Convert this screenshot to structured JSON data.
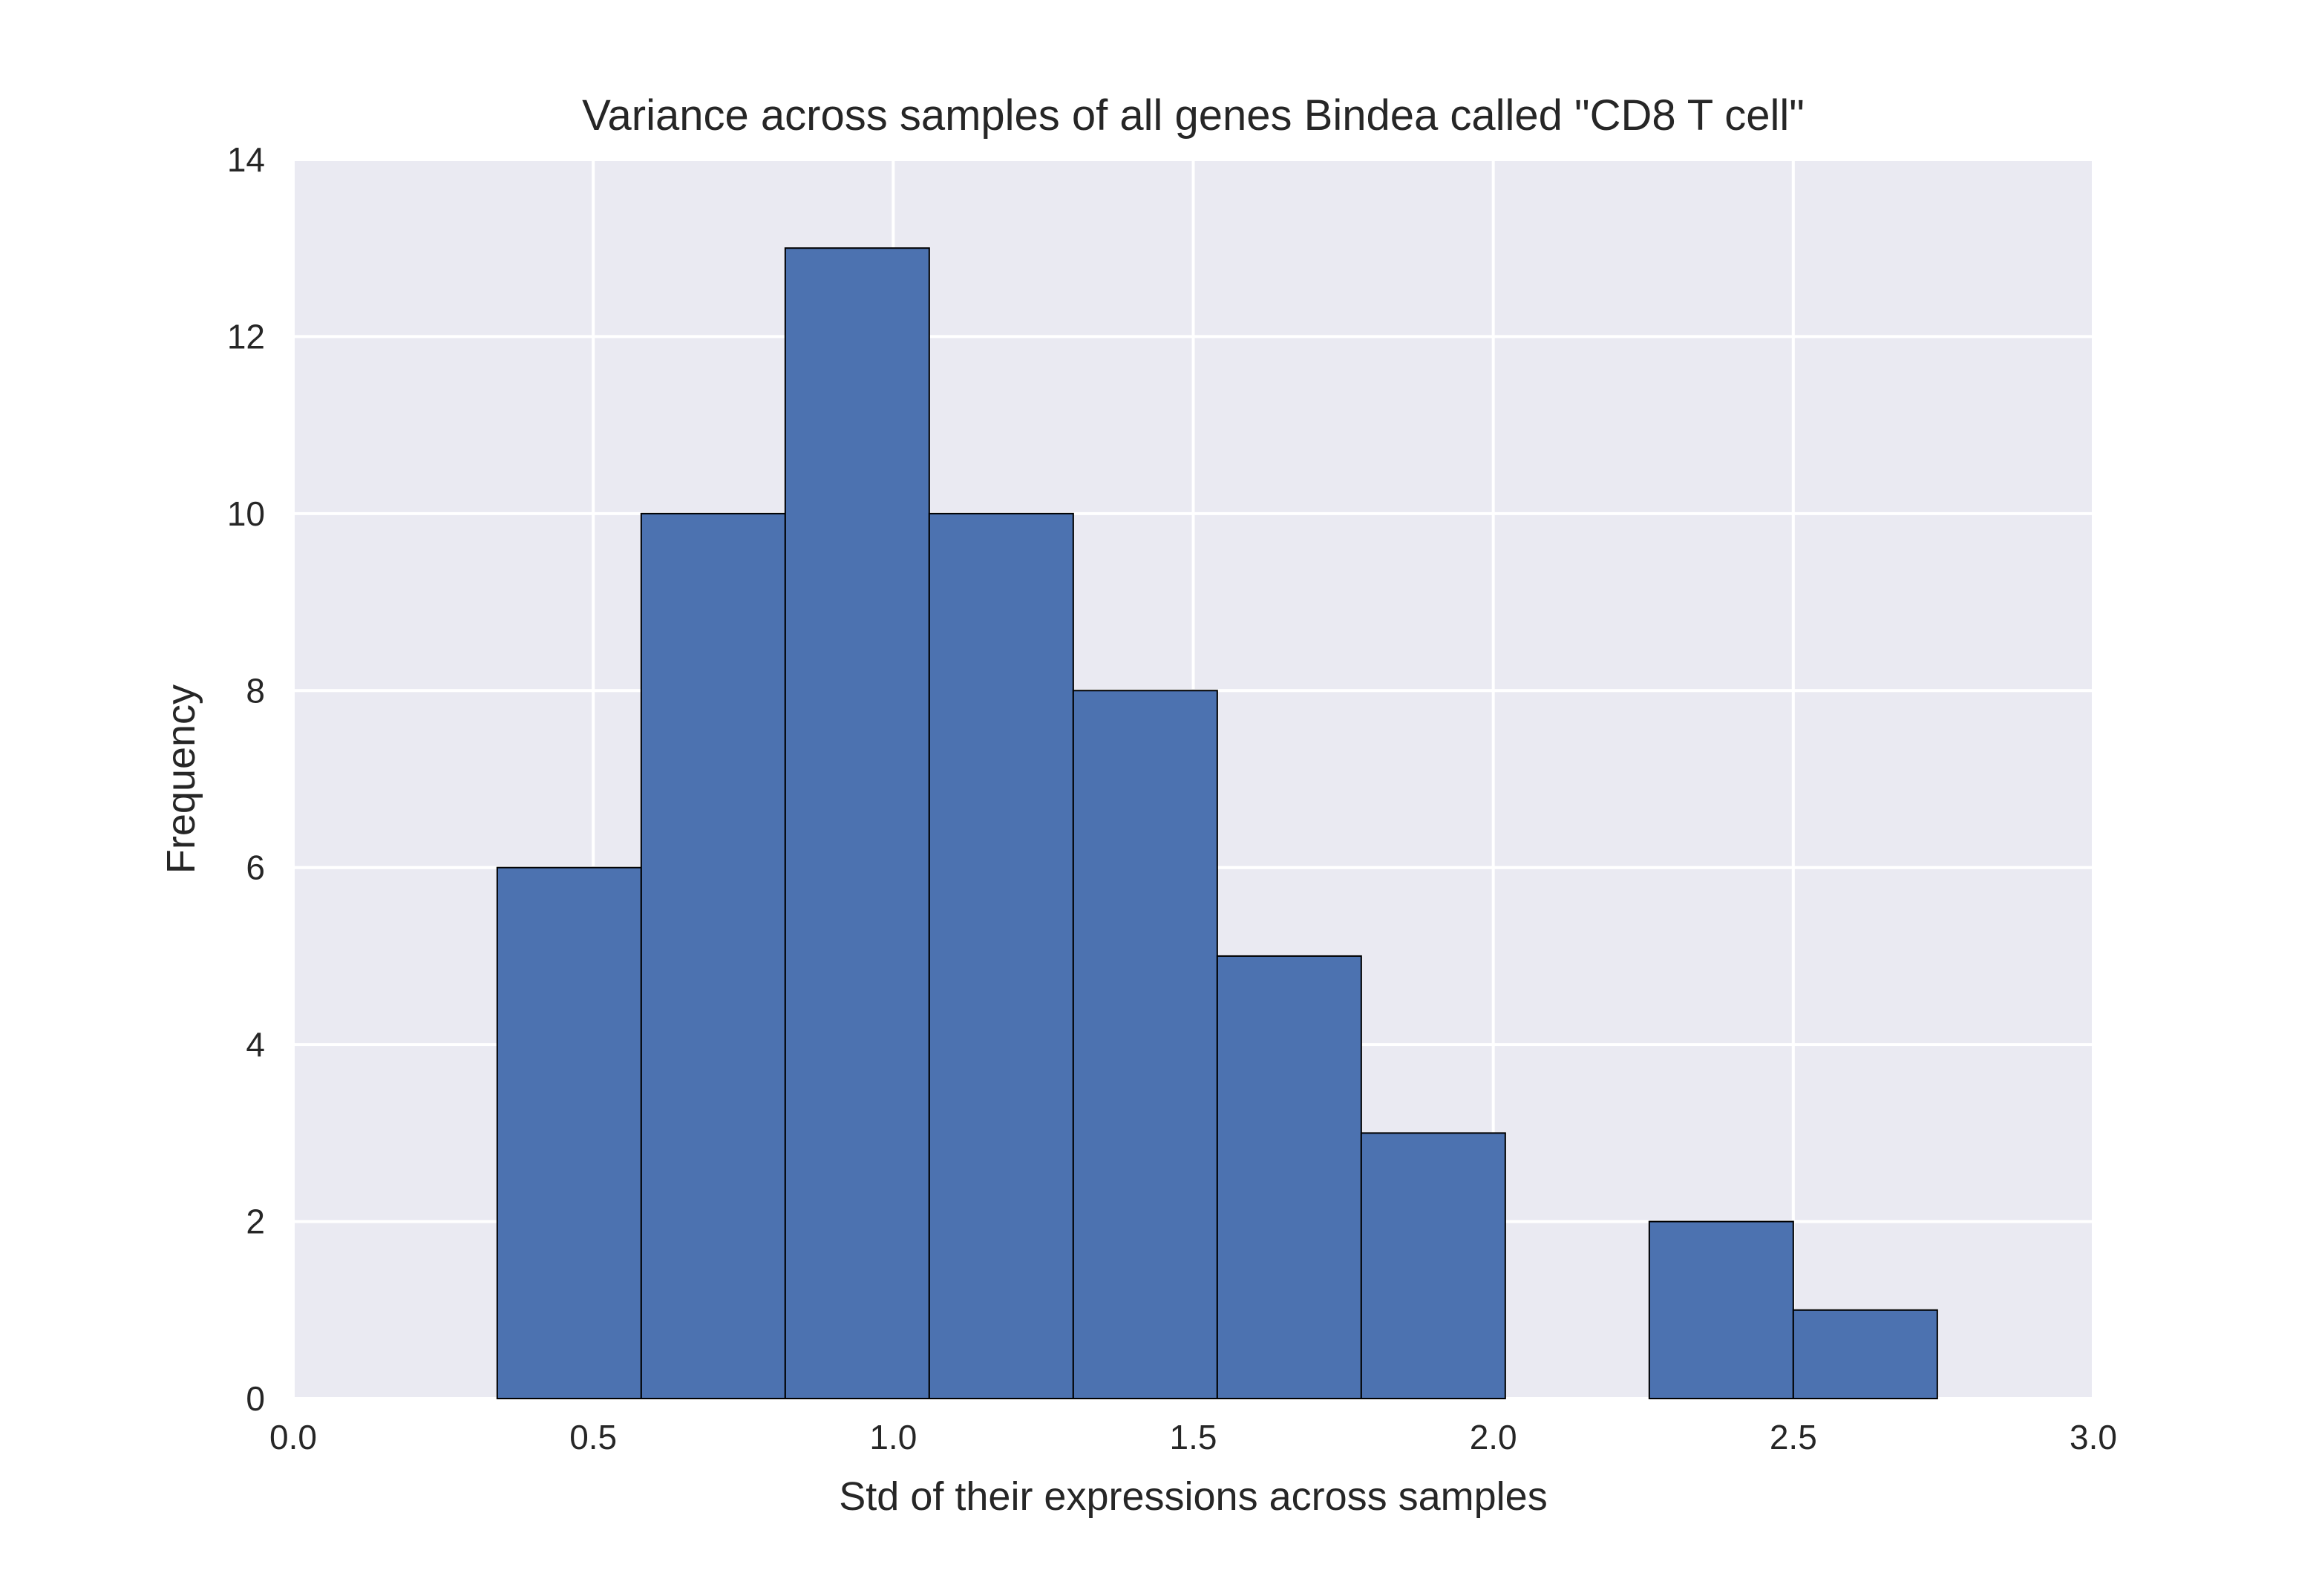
{
  "chart_data": {
    "type": "bar",
    "title": "Variance across samples of all genes Bindea called \"CD8 T cell\"",
    "xlabel": "Std of their expressions across samples",
    "ylabel": "Frequency",
    "xlim": [
      0.0,
      3.0
    ],
    "ylim": [
      0,
      14
    ],
    "x_ticks": [
      "0.0",
      "0.5",
      "1.0",
      "1.5",
      "2.0",
      "2.5",
      "3.0"
    ],
    "y_ticks": [
      "0",
      "2",
      "4",
      "6",
      "8",
      "10",
      "12",
      "14"
    ],
    "grid": true,
    "colors": {
      "background": "#EAEAF2",
      "bar": "#4C72B0",
      "bar_edge": "#000000",
      "grid": "#FFFFFF"
    },
    "bins": [
      {
        "x0": 0.34,
        "x1": 0.58,
        "count": 6
      },
      {
        "x0": 0.58,
        "x1": 0.82,
        "count": 10
      },
      {
        "x0": 0.82,
        "x1": 1.06,
        "count": 13
      },
      {
        "x0": 1.06,
        "x1": 1.3,
        "count": 10
      },
      {
        "x0": 1.3,
        "x1": 1.54,
        "count": 8
      },
      {
        "x0": 1.54,
        "x1": 1.78,
        "count": 5
      },
      {
        "x0": 1.78,
        "x1": 2.02,
        "count": 3
      },
      {
        "x0": 2.02,
        "x1": 2.26,
        "count": 0
      },
      {
        "x0": 2.26,
        "x1": 2.5,
        "count": 2
      },
      {
        "x0": 2.5,
        "x1": 2.74,
        "count": 1
      }
    ]
  }
}
